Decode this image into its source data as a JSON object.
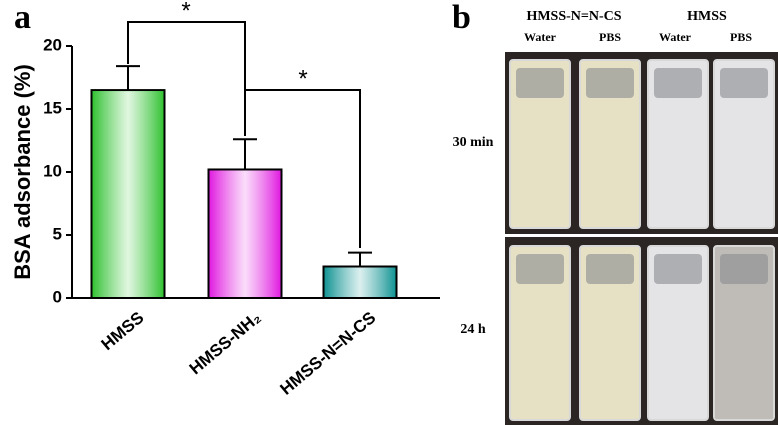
{
  "panel_labels": [
    "a",
    "b"
  ],
  "chart_data": {
    "type": "bar",
    "ylabel": "BSA adsorbance (%)",
    "categories": [
      "HMSS",
      "HMSS-NH₂",
      "HMSS-N=N-CS"
    ],
    "values": [
      16.5,
      10.2,
      2.5
    ],
    "errors": [
      1.9,
      2.4,
      1.1
    ],
    "colors": [
      "#33c233",
      "#e01ee0",
      "#149494"
    ],
    "ylim": [
      0,
      20
    ],
    "yticks": [
      0,
      5,
      10,
      15,
      20
    ],
    "significance": [
      "*",
      "*"
    ]
  },
  "photo": {
    "group_labels": [
      "HMSS-N=N-CS",
      "HMSS"
    ],
    "column_labels": [
      "Water",
      "PBS",
      "Water",
      "PBS"
    ],
    "row_labels": [
      "30 min",
      "24 h"
    ]
  }
}
